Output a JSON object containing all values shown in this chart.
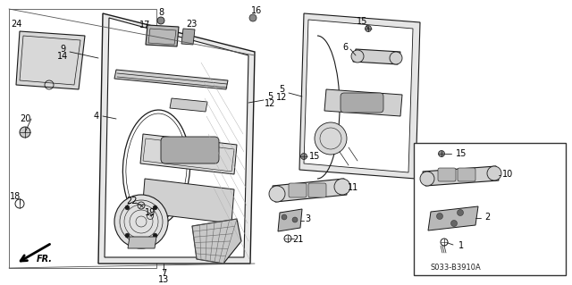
{
  "bg_color": "#f0f0f0",
  "line_color": "#1a1a1a",
  "fig_width": 6.4,
  "fig_height": 3.19,
  "dpi": 100,
  "part_code": "S033-B3910A"
}
